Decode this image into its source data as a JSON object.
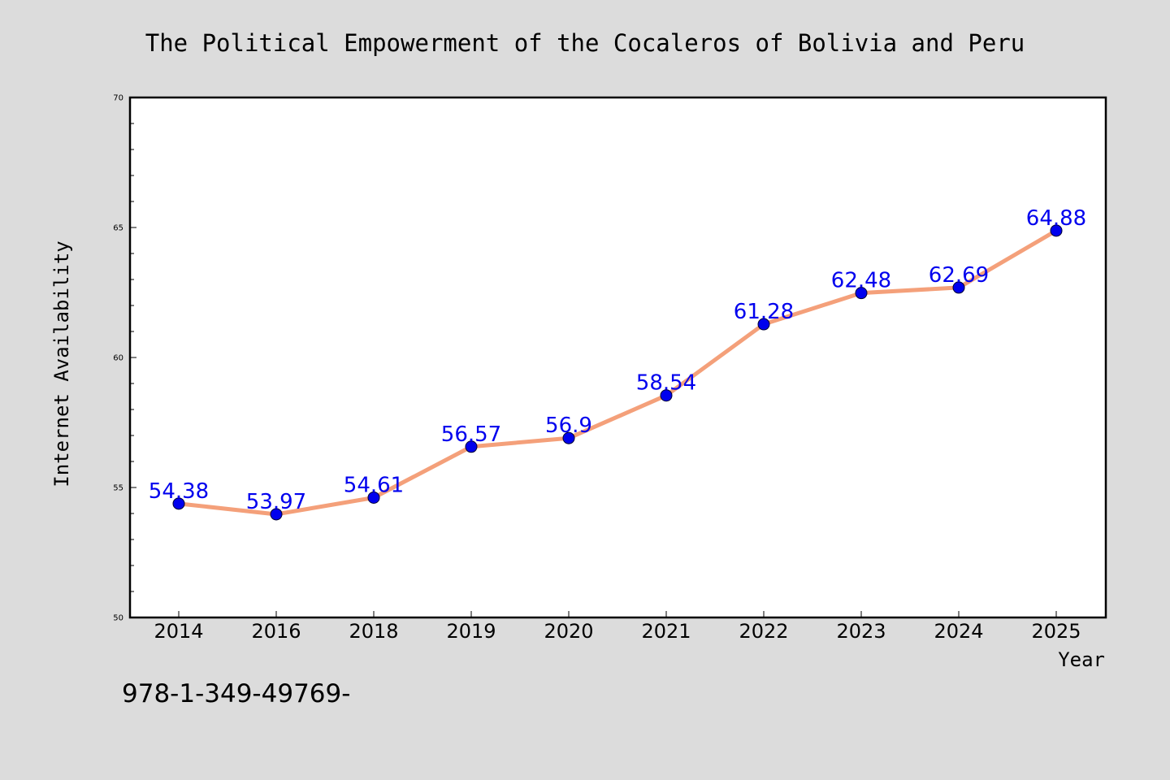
{
  "chart_data": {
    "type": "line",
    "title": "The Political Empowerment of the Cocaleros of Bolivia and Peru",
    "xlabel": "Year",
    "ylabel": "Internet Availability",
    "categories": [
      "2014",
      "2016",
      "2018",
      "2019",
      "2020",
      "2021",
      "2022",
      "2023",
      "2024",
      "2025"
    ],
    "series": [
      {
        "values": [
          54.38,
          53.97,
          54.61,
          56.57,
          56.9,
          58.54,
          61.28,
          62.48,
          62.69,
          64.88
        ],
        "data_labels": [
          "54.38",
          "53.97",
          "54.61",
          "56.57",
          "56.9",
          "58.54",
          "61.28",
          "62.48",
          "62.69",
          "64.88"
        ]
      }
    ],
    "ylim": [
      50,
      70
    ],
    "yticks": [
      50,
      55,
      60,
      65,
      70
    ],
    "ytick_labels": [
      "50",
      "55",
      "60",
      "65",
      "70"
    ],
    "grid": false,
    "colors": {
      "line": "#f4a07a",
      "marker": "#0000ee",
      "label": "#0000ee",
      "background": "#dcdcdc",
      "plot_background": "#ffffff"
    }
  },
  "footer": {
    "text": "978-1-349-49769-"
  }
}
